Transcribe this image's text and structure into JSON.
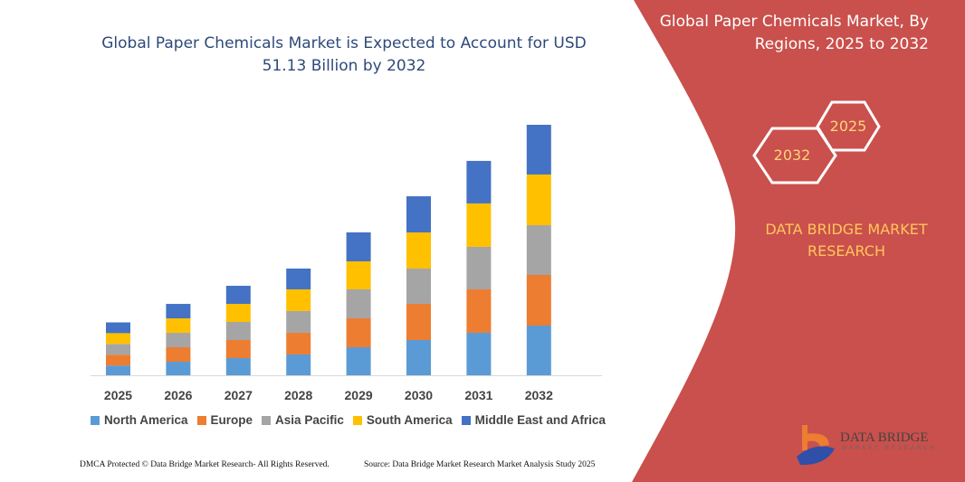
{
  "header": {
    "left_title": "Global Paper Chemicals Market is Expected to Account for USD 51.13 Billion by 2032",
    "right_title": "Global Paper Chemicals Market, By Regions, 2025 to 2032"
  },
  "hexagons": {
    "front": "2032",
    "back": "2025"
  },
  "brand_text": "DATA BRIDGE MARKET RESEARCH",
  "logo": {
    "name": "DATA BRIDGE",
    "sub": "MARKET RESEARCH"
  },
  "footer": {
    "left": "DMCA Protected © Data Bridge Market Research- All Rights Reserved.",
    "right": "Source: Data Bridge Market Research Market Analysis Study 2025"
  },
  "colors": {
    "panel": "#c9504c",
    "hex_text": "#ffd37a",
    "brand_text": "#ffc65c"
  },
  "chart_data": {
    "type": "bar",
    "stacked": true,
    "title": "Global Paper Chemicals Market is Expected to Account for USD 51.13 Billion by 2032",
    "xlabel": "",
    "ylabel": "",
    "grid": false,
    "legend_position": "bottom",
    "ylim": [
      0,
      51.13
    ],
    "categories": [
      "2025",
      "2026",
      "2027",
      "2028",
      "2029",
      "2030",
      "2031",
      "2032"
    ],
    "series": [
      {
        "name": "North America",
        "color": "#5b9bd5",
        "values": [
          2.0,
          2.77,
          3.51,
          4.25,
          5.72,
          7.2,
          8.68,
          10.15
        ]
      },
      {
        "name": "Europe",
        "color": "#ed7d31",
        "values": [
          2.2,
          2.95,
          3.69,
          4.43,
          5.91,
          7.38,
          8.86,
          10.34
        ]
      },
      {
        "name": "Asia Pacific",
        "color": "#a5a5a5",
        "values": [
          2.2,
          2.95,
          3.69,
          4.43,
          5.91,
          7.2,
          8.68,
          10.15
        ]
      },
      {
        "name": "South America",
        "color": "#ffc000",
        "values": [
          2.2,
          2.95,
          3.69,
          4.43,
          5.72,
          7.38,
          8.86,
          10.34
        ]
      },
      {
        "name": "Middle East and Africa",
        "color": "#4472c4",
        "values": [
          2.2,
          2.95,
          3.69,
          4.25,
          5.91,
          7.38,
          8.68,
          10.15
        ]
      }
    ]
  }
}
